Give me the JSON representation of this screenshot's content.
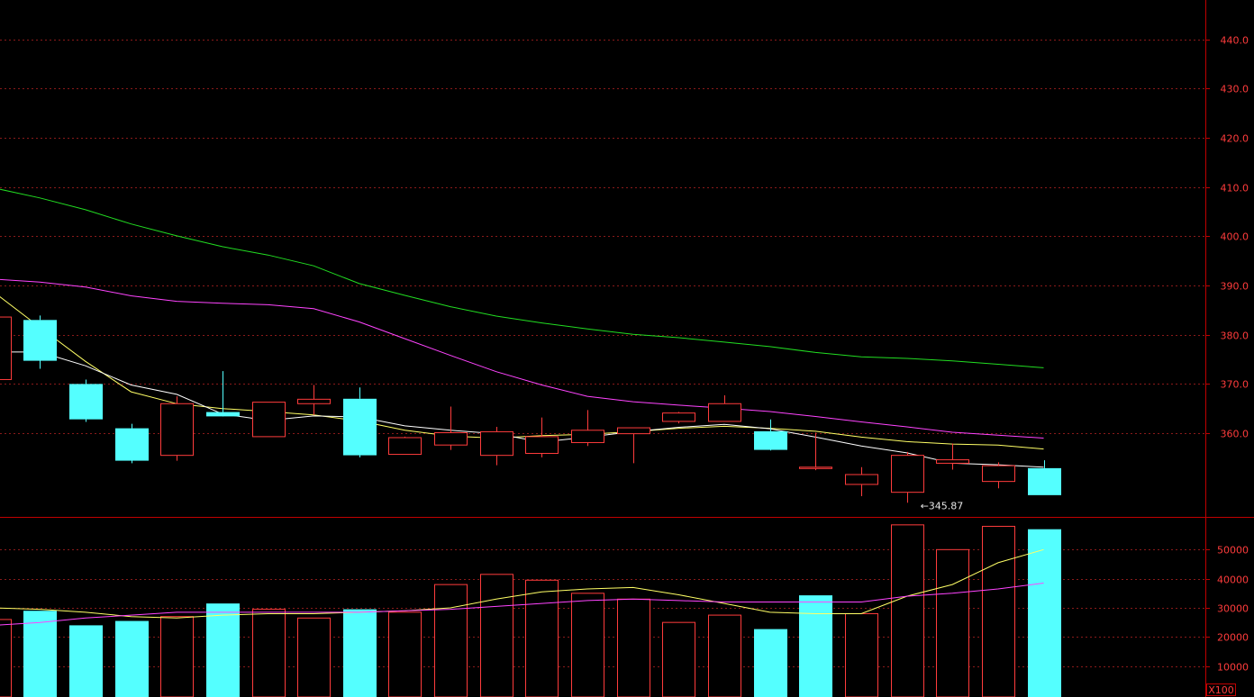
{
  "chart_data": [
    {
      "type": "candlestick",
      "panel": "price",
      "ylim": [
        343,
        448
      ],
      "y_ticks": [
        360,
        370,
        380,
        390,
        400,
        410,
        420,
        430,
        440
      ],
      "y_tick_labels": [
        "360.0",
        "370.0",
        "380.0",
        "390.0",
        "400.0",
        "410.0",
        "420.0",
        "430.0",
        "440.0"
      ],
      "grid": true,
      "up_color": "#ff3c3c",
      "down_color": "#54ffff",
      "candles": [
        {
          "o": 370.9,
          "h": 383.6,
          "l": 370.9,
          "c": 383.6
        },
        {
          "o": 383.0,
          "h": 383.9,
          "l": 373.1,
          "c": 374.9
        },
        {
          "o": 370.0,
          "h": 370.9,
          "l": 362.3,
          "c": 363.0
        },
        {
          "o": 361.0,
          "h": 361.9,
          "l": 353.9,
          "c": 354.6
        },
        {
          "o": 355.5,
          "h": 367.5,
          "l": 354.4,
          "c": 366.0
        },
        {
          "o": 364.3,
          "h": 372.6,
          "l": 363.4,
          "c": 363.6
        },
        {
          "o": 359.3,
          "h": 366.3,
          "l": 359.3,
          "c": 366.3
        },
        {
          "o": 366.0,
          "h": 369.8,
          "l": 363.7,
          "c": 366.9
        },
        {
          "o": 367.0,
          "h": 369.3,
          "l": 355.1,
          "c": 355.7
        },
        {
          "o": 355.7,
          "h": 359.3,
          "l": 355.7,
          "c": 359.1
        },
        {
          "o": 357.6,
          "h": 365.4,
          "l": 356.6,
          "c": 360.1
        },
        {
          "o": 355.5,
          "h": 361.3,
          "l": 353.5,
          "c": 360.3
        },
        {
          "o": 355.9,
          "h": 363.2,
          "l": 355.1,
          "c": 359.3
        },
        {
          "o": 358.1,
          "h": 364.7,
          "l": 357.4,
          "c": 360.6
        },
        {
          "o": 359.9,
          "h": 361.1,
          "l": 353.9,
          "c": 361.1
        },
        {
          "o": 362.4,
          "h": 364.3,
          "l": 362.0,
          "c": 364.1
        },
        {
          "o": 362.4,
          "h": 367.7,
          "l": 362.4,
          "c": 366.0
        },
        {
          "o": 360.4,
          "h": 362.8,
          "l": 356.5,
          "c": 356.8
        },
        {
          "o": 352.9,
          "h": 360.1,
          "l": 352.5,
          "c": 353.1
        },
        {
          "o": 349.6,
          "h": 353.1,
          "l": 347.2,
          "c": 351.6
        },
        {
          "o": 348.0,
          "h": 356.2,
          "l": 345.87,
          "c": 355.5
        },
        {
          "o": 353.9,
          "h": 357.9,
          "l": 352.6,
          "c": 354.6
        },
        {
          "o": 350.2,
          "h": 354.1,
          "l": 348.8,
          "c": 353.4
        },
        {
          "o": 352.9,
          "h": 354.5,
          "l": 347.6,
          "c": 347.6
        }
      ],
      "moving_averages": [
        {
          "color": "#ffff66",
          "values": [
            388.6,
            381.5,
            374.6,
            368.4,
            366.0,
            365.0,
            364.4,
            363.7,
            362.5,
            360.6,
            359.4,
            359.0,
            359.5,
            359.8,
            360.3,
            361.0,
            361.4,
            361.0,
            360.4,
            359.2,
            358.3,
            357.8,
            357.6,
            356.8
          ]
        },
        {
          "color": "#ffffff",
          "values": [
            376.5,
            376.5,
            373.7,
            369.8,
            367.9,
            363.9,
            362.6,
            363.5,
            363.3,
            361.5,
            360.6,
            359.9,
            358.2,
            359.2,
            360.3,
            361.2,
            361.8,
            360.9,
            359.2,
            357.4,
            356.0,
            353.9,
            353.6,
            353.1
          ]
        },
        {
          "color": "#ff44ff",
          "values": [
            391.3,
            390.7,
            389.7,
            387.9,
            386.8,
            386.4,
            386.1,
            385.3,
            382.6,
            379.2,
            375.8,
            372.5,
            369.8,
            367.5,
            366.4,
            365.7,
            365.1,
            364.4,
            363.4,
            362.3,
            361.3,
            360.2,
            359.6,
            359.0
          ]
        },
        {
          "color": "#22dd22",
          "values": [
            409.8,
            407.8,
            405.4,
            402.5,
            400.1,
            397.9,
            396.2,
            394.0,
            390.4,
            388.0,
            385.7,
            383.8,
            382.4,
            381.2,
            380.1,
            379.4,
            378.5,
            377.6,
            376.4,
            375.5,
            375.2,
            374.7,
            374.0,
            373.3
          ]
        }
      ],
      "annotation": {
        "text": "←345.87",
        "candle_index": 20,
        "value": 345.87
      }
    },
    {
      "type": "bar",
      "panel": "volume",
      "ylim": [
        0,
        60000
      ],
      "y_ticks": [
        10000,
        20000,
        30000,
        40000,
        50000
      ],
      "y_tick_labels": [
        "10000",
        "20000",
        "30000",
        "40000",
        "50000"
      ],
      "grid": true,
      "unit_label": "X100",
      "values": [
        26000,
        29000,
        24000,
        25500,
        27000,
        31500,
        29500,
        26500,
        29500,
        28500,
        38000,
        41500,
        39500,
        35000,
        33000,
        25000,
        27500,
        22700,
        34300,
        28000,
        58500,
        50000,
        58000,
        57000
      ],
      "up_flags": [
        true,
        false,
        false,
        false,
        true,
        false,
        true,
        true,
        false,
        true,
        true,
        true,
        true,
        true,
        true,
        true,
        true,
        false,
        false,
        true,
        true,
        true,
        true,
        false
      ],
      "moving_averages": [
        {
          "color": "#ffff66",
          "values": [
            30000,
            29500,
            28500,
            27000,
            26500,
            27500,
            28000,
            28000,
            28500,
            29000,
            30000,
            33000,
            35500,
            36500,
            37000,
            34500,
            31500,
            28500,
            28000,
            28000,
            34000,
            38000,
            45500,
            50000
          ]
        },
        {
          "color": "#ff44ff",
          "values": [
            24000,
            25000,
            26500,
            27500,
            28500,
            28500,
            28500,
            28500,
            28500,
            29000,
            29500,
            30500,
            31500,
            32500,
            33000,
            32500,
            32000,
            32000,
            32000,
            32000,
            34000,
            35000,
            36500,
            38500
          ]
        }
      ]
    }
  ]
}
